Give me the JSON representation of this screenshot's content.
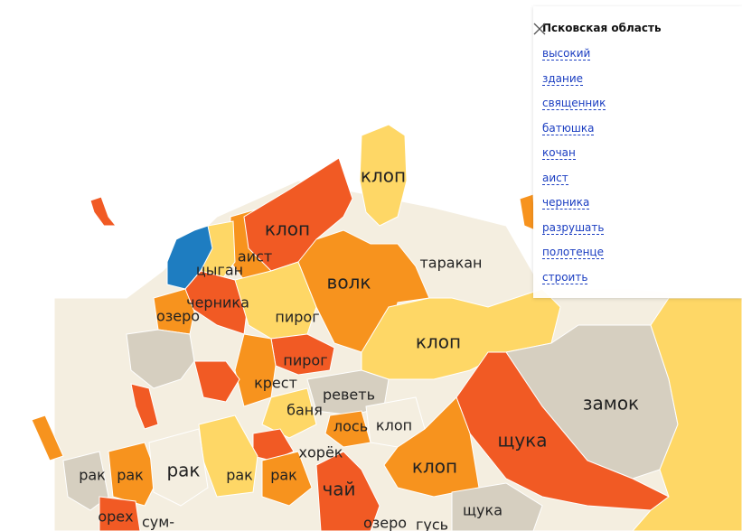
{
  "popup": {
    "title": "Псковская область",
    "items": [
      "высокий",
      "здание",
      "священник",
      "батюшка",
      "кочан",
      "аист",
      "черника",
      "разрушать",
      "полотенце",
      "строить"
    ]
  },
  "map": {
    "labels": [
      "клоп",
      "клоп",
      "аист",
      "цыган",
      "волк",
      "таракан",
      "черника",
      "озеро",
      "пирог",
      "клоп",
      "пирог",
      "крест",
      "реветь",
      "замок",
      "баня",
      "лось",
      "клоп",
      "щука",
      "хорёк",
      "рак",
      "рак",
      "рак",
      "рак",
      "рак",
      "клоп",
      "чай",
      "орех",
      "сум-",
      "щука",
      "озеро",
      "гусь"
    ]
  }
}
